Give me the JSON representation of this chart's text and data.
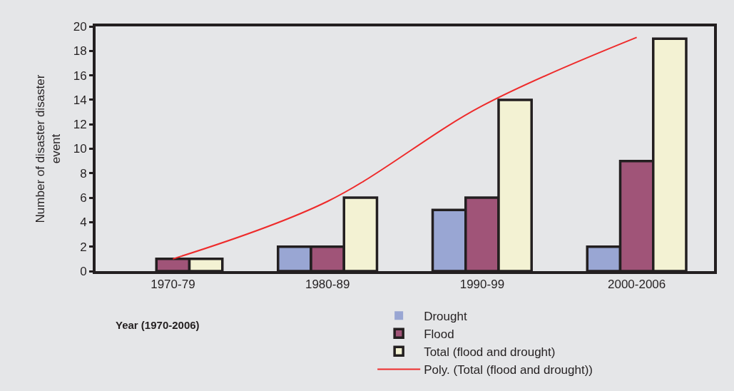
{
  "chart_data": {
    "type": "bar",
    "categories": [
      "1970-79",
      "1980-89",
      "1990-99",
      "2000-2006"
    ],
    "series": [
      {
        "name": "Drought",
        "color": "#99a6d3",
        "values": [
          0,
          2,
          5,
          2
        ]
      },
      {
        "name": "Flood",
        "color": "#a05478",
        "values": [
          1,
          2,
          6,
          9
        ]
      },
      {
        "name": "Total (flood and drought)",
        "color": "#f3f2d3",
        "values": [
          1,
          6,
          14,
          19
        ]
      },
      {
        "name": "Poly. (Total (flood and drought))",
        "type": "line",
        "color": "#ee2b2b",
        "values": [
          1.0,
          5.7,
          13.5,
          19.1
        ]
      }
    ],
    "xlabel": "Year (1970-2006)",
    "ylabel": "Number of disaster disaster event",
    "ylim": [
      0,
      20
    ],
    "yticks": [
      0,
      2,
      4,
      6,
      8,
      10,
      12,
      14,
      16,
      18,
      20
    ],
    "legend": "bottom",
    "grid": false
  }
}
